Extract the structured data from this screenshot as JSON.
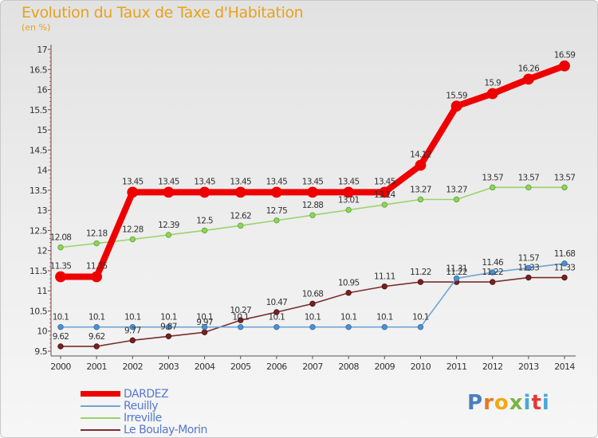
{
  "chart_data": {
    "type": "line",
    "title": "Evolution du Taux de Taxe d'Habitation",
    "subtitle": "(en %)",
    "x": [
      2000,
      2001,
      2002,
      2003,
      2004,
      2005,
      2006,
      2007,
      2008,
      2009,
      2010,
      2011,
      2012,
      2013,
      2014
    ],
    "ylim": [
      9.5,
      17
    ],
    "yticks": [
      9.5,
      10,
      10.5,
      11,
      11.5,
      12,
      12.5,
      13,
      13.5,
      14,
      14.5,
      15,
      15.5,
      16,
      16.5,
      17
    ],
    "grid": false,
    "legend_position": "bottom-left",
    "series": [
      {
        "name": "DARDEZ",
        "color": "#ee0000",
        "values": [
          11.35,
          11.35,
          13.45,
          13.45,
          13.45,
          13.45,
          13.45,
          13.45,
          13.45,
          13.45,
          14.12,
          15.59,
          15.9,
          16.26,
          16.59
        ],
        "labels": [
          "11.35",
          "11.35",
          "13.45",
          "13.45",
          "13.45",
          "13.45",
          "13.45",
          "13.45",
          "13.45",
          "13.45",
          "14.12",
          "15.59",
          "15.9",
          "16.26",
          "16.59"
        ]
      },
      {
        "name": "Reuilly",
        "color": "#6fa4d4",
        "values": [
          10.1,
          10.1,
          10.1,
          10.1,
          10.1,
          10.1,
          10.1,
          10.1,
          10.1,
          10.1,
          10.1,
          11.31,
          11.46,
          11.57,
          11.68
        ],
        "labels": [
          "10.1",
          "10.1",
          "10.1",
          "10.1",
          "10.1",
          "10.1",
          "10.1",
          "10.1",
          "10.1",
          "10.1",
          "10.1",
          "11.31",
          "11.46",
          "11.57",
          "11.68"
        ]
      },
      {
        "name": "Irreville",
        "color": "#9ad36a",
        "values": [
          12.08,
          12.18,
          12.28,
          12.39,
          12.5,
          12.62,
          12.75,
          12.88,
          13.01,
          13.14,
          13.27,
          13.27,
          13.57,
          13.57,
          13.57
        ],
        "labels": [
          "12.08",
          "12.18",
          "12.28",
          "12.39",
          "12.5",
          "12.62",
          "12.75",
          "12.88",
          "13.01",
          "13.14",
          "13.27",
          "13.27",
          "13.57",
          "13.57",
          "13.57"
        ]
      },
      {
        "name": "Le Boulay-Morin",
        "color": "#7a2e2e",
        "values": [
          9.62,
          9.62,
          9.77,
          9.87,
          9.97,
          10.27,
          10.47,
          10.68,
          10.95,
          11.11,
          11.22,
          11.22,
          11.22,
          11.33,
          11.33
        ],
        "labels": [
          "9.62",
          "9.62",
          "9.77",
          "9.87",
          "9.97",
          "10.27",
          "10.47",
          "10.68",
          "10.95",
          "11.11",
          "11.22",
          "11.22",
          "11.22",
          "11.33",
          "11.33"
        ]
      }
    ]
  },
  "legend": {
    "items": [
      {
        "label": "DARDEZ",
        "color": "#ee0000"
      },
      {
        "label": "Reuilly",
        "color": "#6fa4d4"
      },
      {
        "label": "Irreville",
        "color": "#9ad36a"
      },
      {
        "label": "Le Boulay-Morin",
        "color": "#7a2e2e"
      }
    ]
  },
  "logo": {
    "letters": [
      "P",
      "r",
      "o",
      "x",
      "i",
      "t",
      "i"
    ]
  }
}
